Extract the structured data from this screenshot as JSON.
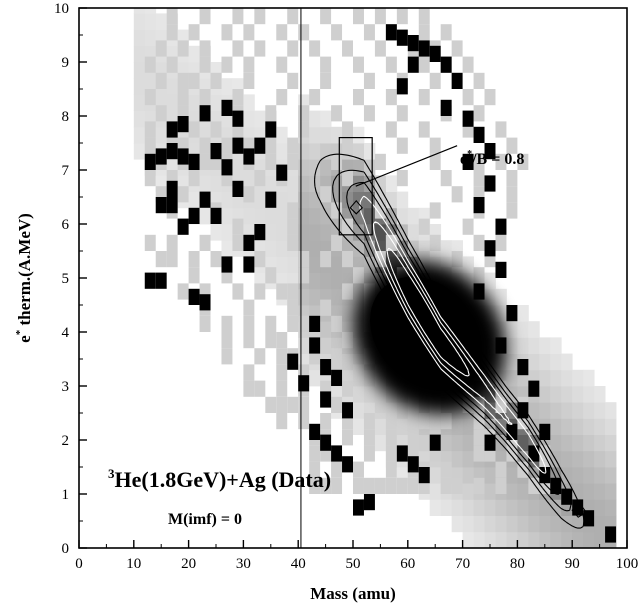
{
  "chart_data": {
    "type": "heatmap",
    "xlabel": "Mass (amu)",
    "ylabel": "e* therm.(A.MeV)",
    "ylabel_main": "e",
    "ylabel_sup": "*",
    "ylabel_rest": " therm.(A.MeV)",
    "xlim": [
      0,
      100
    ],
    "ylim": [
      0,
      10
    ],
    "x_ticks": [
      0,
      10,
      20,
      30,
      40,
      50,
      60,
      70,
      80,
      90,
      100
    ],
    "y_ticks": [
      0,
      1,
      2,
      3,
      4,
      5,
      6,
      7,
      8,
      9,
      10
    ],
    "grid": false,
    "annotation": {
      "label": "e*/B = 0.8",
      "main": "e",
      "sup": "*",
      "rest": "/B = 0.8",
      "selection_box": {
        "x": [
          47.5,
          53.5
        ],
        "y": [
          5.8,
          7.6
        ]
      },
      "pointer_from": [
        50.5,
        6.7
      ],
      "pointer_to": [
        69,
        7.45
      ],
      "line_x": 40.5,
      "line_y": [
        0,
        10
      ]
    },
    "title_sup": "3",
    "title_text": "He(1.8GeV)+Ag (Data)",
    "subtitle": "M(imf) = 0",
    "density_peak": {
      "x": 63,
      "y": 4.0
    },
    "ridge": [
      [
        44,
        6.8
      ],
      [
        52,
        6.3
      ],
      [
        60,
        4.8
      ],
      [
        66,
        3.8
      ],
      [
        74,
        2.9
      ],
      [
        82,
        1.9
      ],
      [
        88,
        1.0
      ],
      [
        92,
        0.5
      ]
    ],
    "contour_levels": [
      0.25,
      0.38,
      0.5,
      0.62,
      0.74,
      0.85
    ],
    "sparse_cells": [
      [
        42,
        10
      ],
      [
        44,
        10
      ],
      [
        46,
        10
      ],
      [
        50,
        10
      ],
      [
        52,
        10
      ],
      [
        54,
        10
      ],
      [
        56,
        10
      ],
      [
        58,
        10
      ],
      [
        60,
        10
      ],
      [
        62,
        10
      ],
      [
        66,
        10
      ],
      [
        68,
        10
      ],
      [
        72,
        10
      ],
      [
        76,
        10
      ],
      [
        82,
        10
      ],
      [
        84,
        10
      ],
      [
        42,
        13
      ],
      [
        46,
        13
      ],
      [
        50,
        13
      ],
      [
        56,
        13
      ],
      [
        60,
        13
      ],
      [
        62,
        13
      ],
      [
        66,
        13
      ],
      [
        76,
        13
      ],
      [
        80,
        13
      ],
      [
        84,
        13
      ],
      [
        42,
        16
      ],
      [
        44,
        16
      ],
      [
        52,
        16
      ],
      [
        56,
        16
      ],
      [
        58,
        16
      ],
      [
        60,
        16
      ],
      [
        64,
        16
      ],
      [
        72,
        16
      ],
      [
        74,
        16
      ],
      [
        78,
        16
      ],
      [
        84,
        16
      ],
      [
        42,
        19
      ],
      [
        44,
        19
      ],
      [
        48,
        19
      ],
      [
        52,
        19
      ],
      [
        56,
        19
      ],
      [
        60,
        19
      ],
      [
        64,
        19
      ],
      [
        72,
        19
      ],
      [
        74,
        19
      ],
      [
        78,
        19
      ],
      [
        36,
        22
      ],
      [
        40,
        22
      ],
      [
        44,
        22
      ],
      [
        48,
        22
      ],
      [
        52,
        22
      ],
      [
        56,
        22
      ],
      [
        60,
        22
      ],
      [
        62,
        22
      ],
      [
        64,
        22
      ],
      [
        66,
        22
      ],
      [
        72,
        22
      ],
      [
        80,
        22
      ],
      [
        34,
        25
      ],
      [
        36,
        25
      ],
      [
        38,
        25
      ],
      [
        40,
        25
      ],
      [
        46,
        25
      ],
      [
        54,
        25
      ],
      [
        60,
        25
      ],
      [
        64,
        25
      ],
      [
        70,
        25
      ],
      [
        72,
        25
      ],
      [
        76,
        25
      ],
      [
        80,
        25
      ],
      [
        30,
        28
      ],
      [
        32,
        28
      ],
      [
        36,
        28
      ],
      [
        40,
        28
      ],
      [
        44,
        28
      ],
      [
        48,
        28
      ],
      [
        54,
        28
      ],
      [
        60,
        28
      ],
      [
        66,
        28
      ],
      [
        70,
        28
      ],
      [
        76,
        28
      ],
      [
        30,
        31
      ],
      [
        36,
        31
      ],
      [
        40,
        31
      ],
      [
        46,
        31
      ],
      [
        50,
        31
      ],
      [
        54,
        31
      ],
      [
        60,
        31
      ],
      [
        66,
        31
      ],
      [
        70,
        31
      ],
      [
        72,
        31
      ],
      [
        26,
        34
      ],
      [
        32,
        34
      ],
      [
        36,
        34
      ],
      [
        38,
        34
      ],
      [
        42,
        34
      ],
      [
        46,
        34
      ],
      [
        52,
        34
      ],
      [
        58,
        34
      ],
      [
        62,
        34
      ],
      [
        66,
        34
      ],
      [
        70,
        34
      ],
      [
        72,
        34
      ],
      [
        26,
        37
      ],
      [
        30,
        37
      ],
      [
        34,
        37
      ],
      [
        36,
        37
      ],
      [
        42,
        37
      ],
      [
        48,
        37
      ],
      [
        54,
        37
      ],
      [
        60,
        37
      ],
      [
        66,
        37
      ],
      [
        70,
        37
      ],
      [
        22,
        40
      ],
      [
        26,
        40
      ],
      [
        30,
        40
      ],
      [
        34,
        40
      ],
      [
        38,
        40
      ],
      [
        40,
        40
      ],
      [
        46,
        40
      ],
      [
        52,
        40
      ],
      [
        56,
        40
      ],
      [
        62,
        40
      ],
      [
        66,
        40
      ],
      [
        72,
        40
      ],
      [
        22,
        43
      ],
      [
        30,
        43
      ],
      [
        38,
        43
      ],
      [
        44,
        43
      ],
      [
        52,
        43
      ],
      [
        56,
        43
      ],
      [
        60,
        43
      ],
      [
        66,
        43
      ],
      [
        18,
        46
      ],
      [
        22,
        46
      ],
      [
        28,
        46
      ],
      [
        32,
        46
      ],
      [
        36,
        46
      ],
      [
        38,
        46
      ],
      [
        48,
        46
      ],
      [
        52,
        46
      ],
      [
        56,
        46
      ],
      [
        60,
        46
      ],
      [
        64,
        46
      ],
      [
        68,
        46
      ],
      [
        72,
        46
      ],
      [
        20,
        49
      ],
      [
        26,
        49
      ],
      [
        34,
        49
      ],
      [
        40,
        49
      ],
      [
        50,
        49
      ],
      [
        58,
        49
      ],
      [
        66,
        49
      ],
      [
        72,
        49
      ],
      [
        14,
        52
      ],
      [
        16,
        52
      ],
      [
        20,
        52
      ],
      [
        24,
        52
      ],
      [
        32,
        52
      ],
      [
        40,
        52
      ],
      [
        44,
        52
      ],
      [
        48,
        52
      ],
      [
        54,
        52
      ],
      [
        62,
        52
      ],
      [
        68,
        52
      ],
      [
        74,
        52
      ],
      [
        12,
        55
      ],
      [
        16,
        55
      ],
      [
        22,
        55
      ],
      [
        28,
        55
      ],
      [
        38,
        55
      ],
      [
        46,
        55
      ],
      [
        56,
        55
      ],
      [
        64,
        55
      ],
      [
        72,
        55
      ],
      [
        76,
        55
      ],
      [
        18,
        58
      ],
      [
        28,
        58
      ],
      [
        38,
        58
      ],
      [
        48,
        58
      ],
      [
        62,
        58
      ],
      [
        70,
        58
      ],
      [
        76,
        58
      ],
      [
        16,
        61
      ],
      [
        24,
        61
      ],
      [
        38,
        61
      ],
      [
        46,
        61
      ],
      [
        54,
        61
      ],
      [
        64,
        61
      ],
      [
        72,
        61
      ],
      [
        78,
        61
      ],
      [
        14,
        64
      ],
      [
        18,
        64
      ],
      [
        30,
        64
      ],
      [
        44,
        64
      ],
      [
        54,
        64
      ],
      [
        68,
        64
      ],
      [
        72,
        64
      ],
      [
        78,
        64
      ],
      [
        12,
        67
      ],
      [
        16,
        67
      ],
      [
        20,
        67
      ],
      [
        26,
        67
      ],
      [
        32,
        67
      ],
      [
        36,
        67
      ],
      [
        48,
        67
      ],
      [
        58,
        67
      ],
      [
        66,
        67
      ],
      [
        72,
        67
      ],
      [
        78,
        67
      ],
      [
        12,
        70
      ],
      [
        14,
        70
      ],
      [
        18,
        70
      ],
      [
        22,
        70
      ],
      [
        24,
        70
      ],
      [
        26,
        70
      ],
      [
        30,
        70
      ],
      [
        34,
        70
      ],
      [
        38,
        70
      ],
      [
        46,
        70
      ],
      [
        54,
        70
      ],
      [
        64,
        70
      ],
      [
        72,
        70
      ],
      [
        76,
        70
      ],
      [
        80,
        70
      ],
      [
        12,
        73
      ],
      [
        16,
        73
      ],
      [
        18,
        73
      ],
      [
        22,
        73
      ],
      [
        26,
        73
      ],
      [
        30,
        73
      ],
      [
        34,
        73
      ],
      [
        38,
        73
      ],
      [
        48,
        73
      ],
      [
        58,
        73
      ],
      [
        64,
        73
      ],
      [
        78,
        73
      ],
      [
        12,
        76
      ],
      [
        16,
        76
      ],
      [
        20,
        76
      ],
      [
        24,
        76
      ],
      [
        28,
        76
      ],
      [
        34,
        76
      ],
      [
        40,
        76
      ],
      [
        48,
        76
      ],
      [
        56,
        76
      ],
      [
        62,
        76
      ],
      [
        70,
        76
      ],
      [
        76,
        76
      ],
      [
        14,
        79
      ],
      [
        18,
        79
      ],
      [
        22,
        79
      ],
      [
        28,
        79
      ],
      [
        34,
        79
      ],
      [
        40,
        79
      ],
      [
        46,
        79
      ],
      [
        52,
        79
      ],
      [
        58,
        79
      ],
      [
        66,
        79
      ],
      [
        72,
        79
      ],
      [
        12,
        82
      ],
      [
        18,
        82
      ],
      [
        22,
        82
      ],
      [
        28,
        82
      ],
      [
        36,
        82
      ],
      [
        42,
        82
      ],
      [
        50,
        82
      ],
      [
        56,
        82
      ],
      [
        62,
        82
      ],
      [
        70,
        82
      ],
      [
        74,
        82
      ],
      [
        14,
        85
      ],
      [
        18,
        85
      ],
      [
        20,
        85
      ],
      [
        24,
        85
      ],
      [
        30,
        85
      ],
      [
        38,
        85
      ],
      [
        44,
        85
      ],
      [
        52,
        85
      ],
      [
        58,
        85
      ],
      [
        64,
        85
      ],
      [
        72,
        85
      ],
      [
        12,
        88
      ],
      [
        16,
        88
      ],
      [
        22,
        88
      ],
      [
        26,
        88
      ],
      [
        30,
        88
      ],
      [
        36,
        88
      ],
      [
        44,
        88
      ],
      [
        50,
        88
      ],
      [
        56,
        88
      ],
      [
        62,
        88
      ],
      [
        66,
        88
      ],
      [
        70,
        88
      ],
      [
        14,
        91
      ],
      [
        18,
        91
      ],
      [
        22,
        91
      ],
      [
        28,
        91
      ],
      [
        32,
        91
      ],
      [
        38,
        91
      ],
      [
        42,
        91
      ],
      [
        48,
        91
      ],
      [
        54,
        91
      ],
      [
        60,
        91
      ],
      [
        64,
        91
      ],
      [
        68,
        91
      ],
      [
        16,
        94
      ],
      [
        20,
        94
      ],
      [
        26,
        94
      ],
      [
        30,
        94
      ],
      [
        36,
        94
      ],
      [
        40,
        94
      ],
      [
        46,
        94
      ],
      [
        52,
        94
      ],
      [
        56,
        94
      ],
      [
        62,
        94
      ],
      [
        66,
        94
      ],
      [
        16,
        97
      ],
      [
        22,
        97
      ],
      [
        28,
        97
      ],
      [
        32,
        97
      ],
      [
        38,
        97
      ],
      [
        44,
        97
      ],
      [
        50,
        97
      ],
      [
        54,
        97
      ],
      [
        58,
        97
      ],
      [
        62,
        97
      ]
    ],
    "ink_cells": [
      [
        12,
        48
      ],
      [
        14,
        48
      ],
      [
        20,
        45
      ],
      [
        22,
        44
      ],
      [
        26,
        51
      ],
      [
        30,
        51
      ],
      [
        18,
        58
      ],
      [
        14,
        62
      ],
      [
        16,
        62
      ],
      [
        22,
        63
      ],
      [
        28,
        65
      ],
      [
        16,
        65
      ],
      [
        12,
        70
      ],
      [
        14,
        71
      ],
      [
        16,
        72
      ],
      [
        18,
        71
      ],
      [
        20,
        70
      ],
      [
        24,
        72
      ],
      [
        26,
        69
      ],
      [
        28,
        73
      ],
      [
        16,
        76
      ],
      [
        18,
        77
      ],
      [
        22,
        79
      ],
      [
        26,
        80
      ],
      [
        30,
        71
      ],
      [
        32,
        73
      ],
      [
        34,
        76
      ],
      [
        28,
        78
      ],
      [
        36,
        68
      ],
      [
        34,
        63
      ],
      [
        32,
        57
      ],
      [
        30,
        55
      ],
      [
        24,
        60
      ],
      [
        20,
        60
      ],
      [
        42,
        36
      ],
      [
        44,
        32
      ],
      [
        46,
        30
      ],
      [
        44,
        26
      ],
      [
        48,
        24
      ],
      [
        38,
        33
      ],
      [
        40,
        29
      ],
      [
        42,
        40
      ],
      [
        56,
        94
      ],
      [
        58,
        93
      ],
      [
        60,
        92
      ],
      [
        62,
        91
      ],
      [
        64,
        90
      ],
      [
        66,
        88
      ],
      [
        60,
        88
      ],
      [
        68,
        85
      ],
      [
        58,
        84
      ],
      [
        66,
        80
      ],
      [
        70,
        78
      ],
      [
        72,
        75
      ],
      [
        74,
        72
      ],
      [
        70,
        70
      ],
      [
        74,
        66
      ],
      [
        72,
        62
      ],
      [
        76,
        58
      ],
      [
        74,
        54
      ],
      [
        76,
        50
      ],
      [
        72,
        46
      ],
      [
        78,
        42
      ],
      [
        76,
        36
      ],
      [
        80,
        32
      ],
      [
        82,
        28
      ],
      [
        80,
        24
      ],
      [
        78,
        20
      ],
      [
        74,
        18
      ],
      [
        84,
        20
      ],
      [
        82,
        16
      ],
      [
        84,
        12
      ],
      [
        86,
        10
      ],
      [
        88,
        8
      ],
      [
        90,
        6
      ],
      [
        92,
        4
      ],
      [
        96,
        1
      ],
      [
        42,
        20
      ],
      [
        44,
        18
      ],
      [
        46,
        16
      ],
      [
        48,
        14
      ],
      [
        60,
        14
      ],
      [
        62,
        12
      ],
      [
        58,
        16
      ],
      [
        64,
        18
      ],
      [
        50,
        6
      ],
      [
        52,
        7
      ]
    ]
  }
}
